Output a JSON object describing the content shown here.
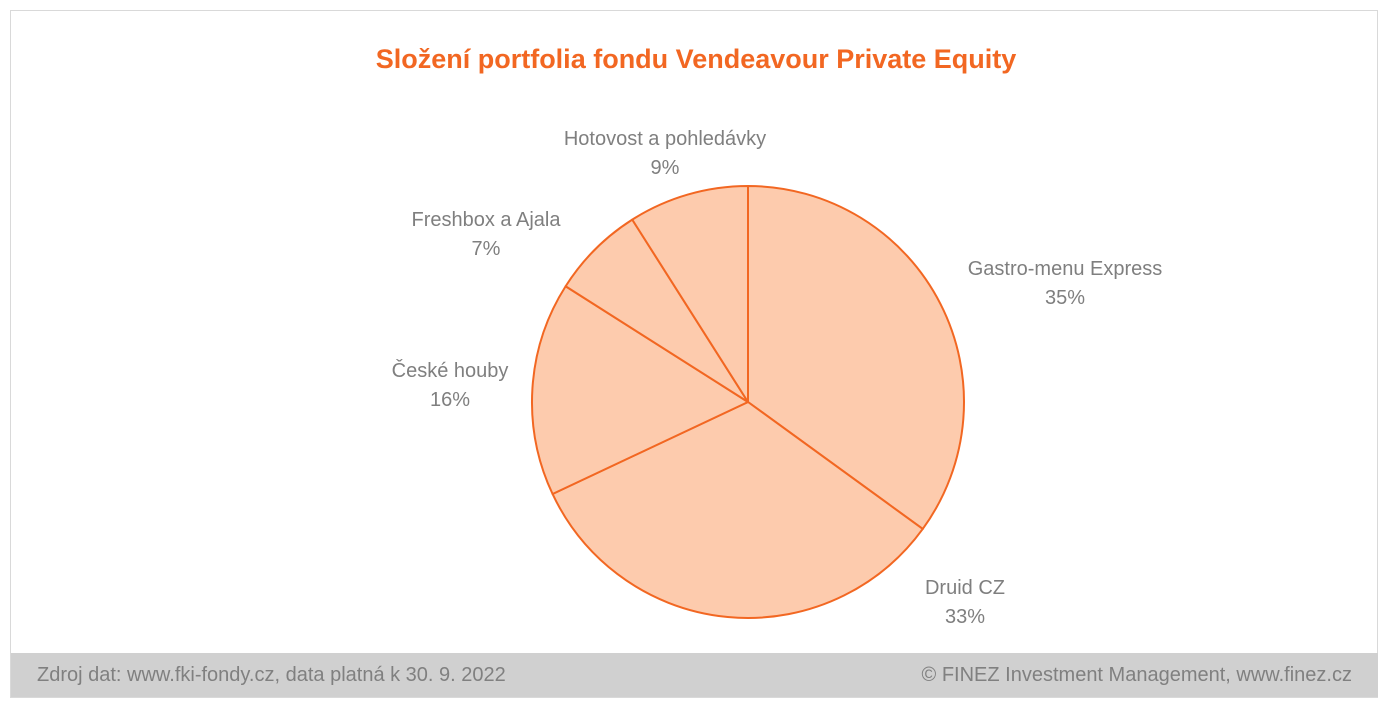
{
  "chart_data": {
    "type": "pie",
    "title": "Složení portfolia fondu Vendeavour Private Equity",
    "slices": [
      {
        "label": "Gastro-menu Express",
        "value": 35,
        "value_label": "35%"
      },
      {
        "label": "Druid CZ",
        "value": 33,
        "value_label": "33%"
      },
      {
        "label": "České houby",
        "value": 16,
        "value_label": "16%"
      },
      {
        "label": "Freshbox a Ajala",
        "value": 7,
        "value_label": "7%"
      },
      {
        "label": "Hotovost a pohledávky",
        "value": 9,
        "value_label": "9%"
      }
    ],
    "colors": {
      "fill": "#fdcbad",
      "stroke": "#f26722",
      "title": "#f26722",
      "label": "#7f7f7f"
    }
  },
  "footer": {
    "source": "Zdroj dat: www.fki-fondy.cz, data platná k 30. 9. 2022",
    "copyright": "© FINEZ Investment Management, www.finez.cz"
  }
}
